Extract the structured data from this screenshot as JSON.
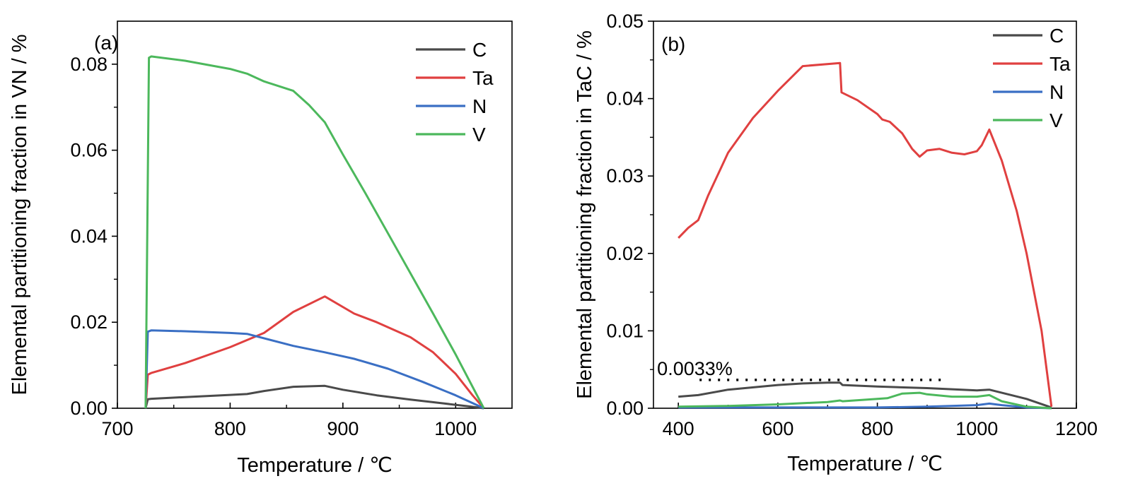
{
  "chart_data": [
    {
      "type": "line",
      "panel_label": "(a)",
      "xlabel": "Temperature / ℃",
      "ylabel": "Elemental partitioning fraction in VN / %",
      "xlim": [
        700,
        1050
      ],
      "ylim": [
        0,
        0.09
      ],
      "xticks": [
        700,
        800,
        900,
        1000
      ],
      "yticks": [
        0.0,
        0.02,
        0.04,
        0.06,
        0.08
      ],
      "ytick_labels": [
        "0.00",
        "0.02",
        "0.04",
        "0.06",
        "0.08"
      ],
      "grid": false,
      "legend": "top-right",
      "series": [
        {
          "name": "C",
          "color": "#4a4a4a",
          "x": [
            725,
            727,
            730,
            760,
            800,
            815,
            830,
            856,
            884,
            900,
            930,
            960,
            990,
            1010,
            1025
          ],
          "y": [
            0,
            0.0021,
            0.0022,
            0.0026,
            0.0031,
            0.0033,
            0.004,
            0.005,
            0.0052,
            0.0043,
            0.003,
            0.002,
            0.0011,
            0.0005,
            0
          ]
        },
        {
          "name": "Ta",
          "color": "#e04040",
          "x": [
            725,
            727,
            730,
            760,
            800,
            830,
            856,
            884,
            910,
            930,
            960,
            980,
            1000,
            1015,
            1025
          ],
          "y": [
            0,
            0.0078,
            0.0082,
            0.0105,
            0.0142,
            0.0175,
            0.0224,
            0.026,
            0.022,
            0.02,
            0.0165,
            0.013,
            0.008,
            0.003,
            0
          ]
        },
        {
          "name": "N",
          "color": "#3a6fc4",
          "x": [
            725,
            727,
            730,
            760,
            800,
            815,
            856,
            884,
            910,
            940,
            970,
            1000,
            1025
          ],
          "y": [
            0,
            0.0178,
            0.0181,
            0.0179,
            0.0175,
            0.0173,
            0.0145,
            0.013,
            0.0115,
            0.0092,
            0.0062,
            0.003,
            0
          ]
        },
        {
          "name": "V",
          "color": "#4cb85c",
          "x": [
            725,
            728,
            730,
            760,
            800,
            815,
            830,
            856,
            870,
            884,
            900,
            920,
            950,
            980,
            1000,
            1025
          ],
          "y": [
            0,
            0.0815,
            0.0818,
            0.0808,
            0.0789,
            0.0778,
            0.076,
            0.0738,
            0.0705,
            0.0665,
            0.059,
            0.05,
            0.036,
            0.022,
            0.0125,
            0
          ]
        }
      ]
    },
    {
      "type": "line",
      "panel_label": "(b)",
      "xlabel": "Temperature / ℃",
      "ylabel": "Elemental partitioning fraction in TaC / %",
      "xlim": [
        350,
        1200
      ],
      "ylim": [
        0,
        0.05
      ],
      "xticks": [
        400,
        600,
        800,
        1000,
        1200
      ],
      "yticks": [
        0.0,
        0.01,
        0.02,
        0.03,
        0.04,
        0.05
      ],
      "ytick_labels": [
        "0.00",
        "0.01",
        "0.02",
        "0.03",
        "0.04",
        "0.05"
      ],
      "grid": false,
      "legend": "top-right",
      "annotation": {
        "text": "0.0033%",
        "y": 0.0033,
        "x_from": 400,
        "x_to": 930
      },
      "series": [
        {
          "name": "C",
          "color": "#4a4a4a",
          "x": [
            400,
            440,
            500,
            600,
            650,
            700,
            725,
            730,
            800,
            900,
            1000,
            1025,
            1050,
            1100,
            1150
          ],
          "y": [
            0.0015,
            0.0017,
            0.0024,
            0.003,
            0.0032,
            0.0033,
            0.0033,
            0.003,
            0.0028,
            0.0026,
            0.0023,
            0.0024,
            0.002,
            0.0012,
            0.0001
          ]
        },
        {
          "name": "Ta",
          "color": "#e04040",
          "x": [
            400,
            420,
            440,
            460,
            500,
            550,
            600,
            650,
            725,
            728,
            760,
            800,
            810,
            825,
            850,
            870,
            885,
            900,
            925,
            950,
            975,
            1000,
            1010,
            1025,
            1050,
            1080,
            1100,
            1130,
            1150
          ],
          "y": [
            0.022,
            0.0233,
            0.0243,
            0.0275,
            0.033,
            0.0375,
            0.041,
            0.0442,
            0.0446,
            0.0408,
            0.0398,
            0.038,
            0.0373,
            0.037,
            0.0355,
            0.0335,
            0.0325,
            0.0333,
            0.0335,
            0.033,
            0.0328,
            0.0332,
            0.034,
            0.036,
            0.032,
            0.0255,
            0.02,
            0.01,
            0.0002
          ]
        },
        {
          "name": "N",
          "color": "#3a6fc4",
          "x": [
            400,
            600,
            800,
            900,
            1000,
            1025,
            1050,
            1100,
            1150
          ],
          "y": [
            0.0001,
            0.0001,
            0.0001,
            0.0002,
            0.0004,
            0.0006,
            0.0004,
            0.0001,
            0
          ]
        },
        {
          "name": "V",
          "color": "#4cb85c",
          "x": [
            400,
            500,
            600,
            700,
            725,
            730,
            800,
            820,
            850,
            885,
            900,
            950,
            1000,
            1025,
            1050,
            1100,
            1150
          ],
          "y": [
            0.0002,
            0.0003,
            0.0005,
            0.0008,
            0.001,
            0.0009,
            0.0012,
            0.0013,
            0.0019,
            0.002,
            0.0018,
            0.0015,
            0.0015,
            0.0017,
            0.0009,
            0.0002,
            0
          ]
        }
      ]
    }
  ]
}
